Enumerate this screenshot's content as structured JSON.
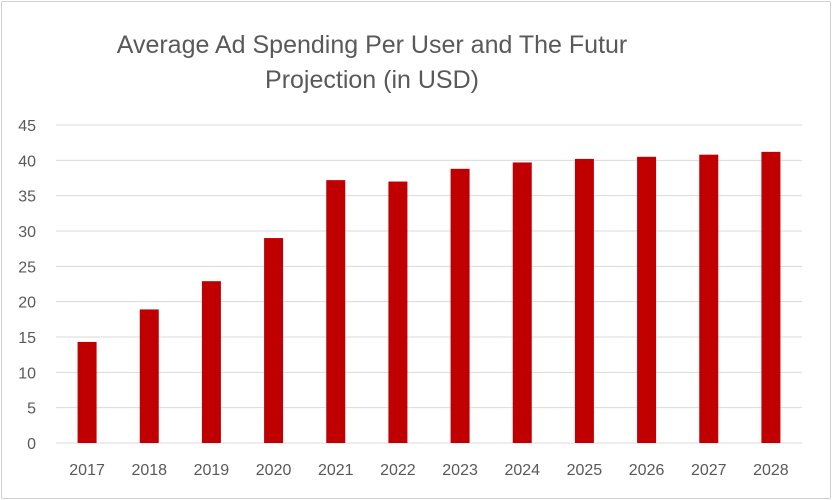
{
  "chart_data": {
    "type": "bar",
    "title": "Average Ad Spending Per User and The Futur Projection (in USD)",
    "xlabel": "",
    "ylabel": "",
    "categories": [
      "2017",
      "2018",
      "2019",
      "2020",
      "2021",
      "2022",
      "2023",
      "2024",
      "2025",
      "2026",
      "2027",
      "2028"
    ],
    "values": [
      14.3,
      18.9,
      22.9,
      29.0,
      37.2,
      37.0,
      38.8,
      39.7,
      40.2,
      40.5,
      40.8,
      41.2
    ],
    "ylim": [
      0,
      45
    ],
    "yticks": [
      "0",
      "5",
      "10",
      "15",
      "20",
      "25",
      "30",
      "35",
      "40",
      "45"
    ],
    "grid": true,
    "legend": "none",
    "bar_color": "#C00000"
  }
}
